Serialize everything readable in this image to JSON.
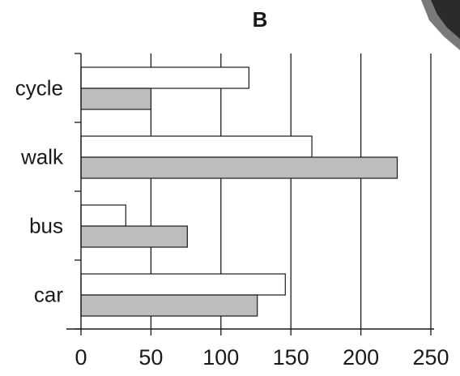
{
  "chart_data": {
    "type": "bar",
    "orientation": "horizontal",
    "title": "B",
    "xlabel": "",
    "ylabel": "",
    "categories": [
      "cycle",
      "walk",
      "bus",
      "car"
    ],
    "series": [
      {
        "values": [
          120,
          165,
          32,
          146
        ],
        "color": "#ffffff"
      },
      {
        "values": [
          50,
          226,
          76,
          126
        ],
        "color": "#bdbdbf"
      }
    ],
    "xlim": [
      0,
      250
    ],
    "xticks": [
      "0",
      "50",
      "100",
      "150",
      "200",
      "250"
    ],
    "grid": "vertical",
    "legend": "none"
  }
}
